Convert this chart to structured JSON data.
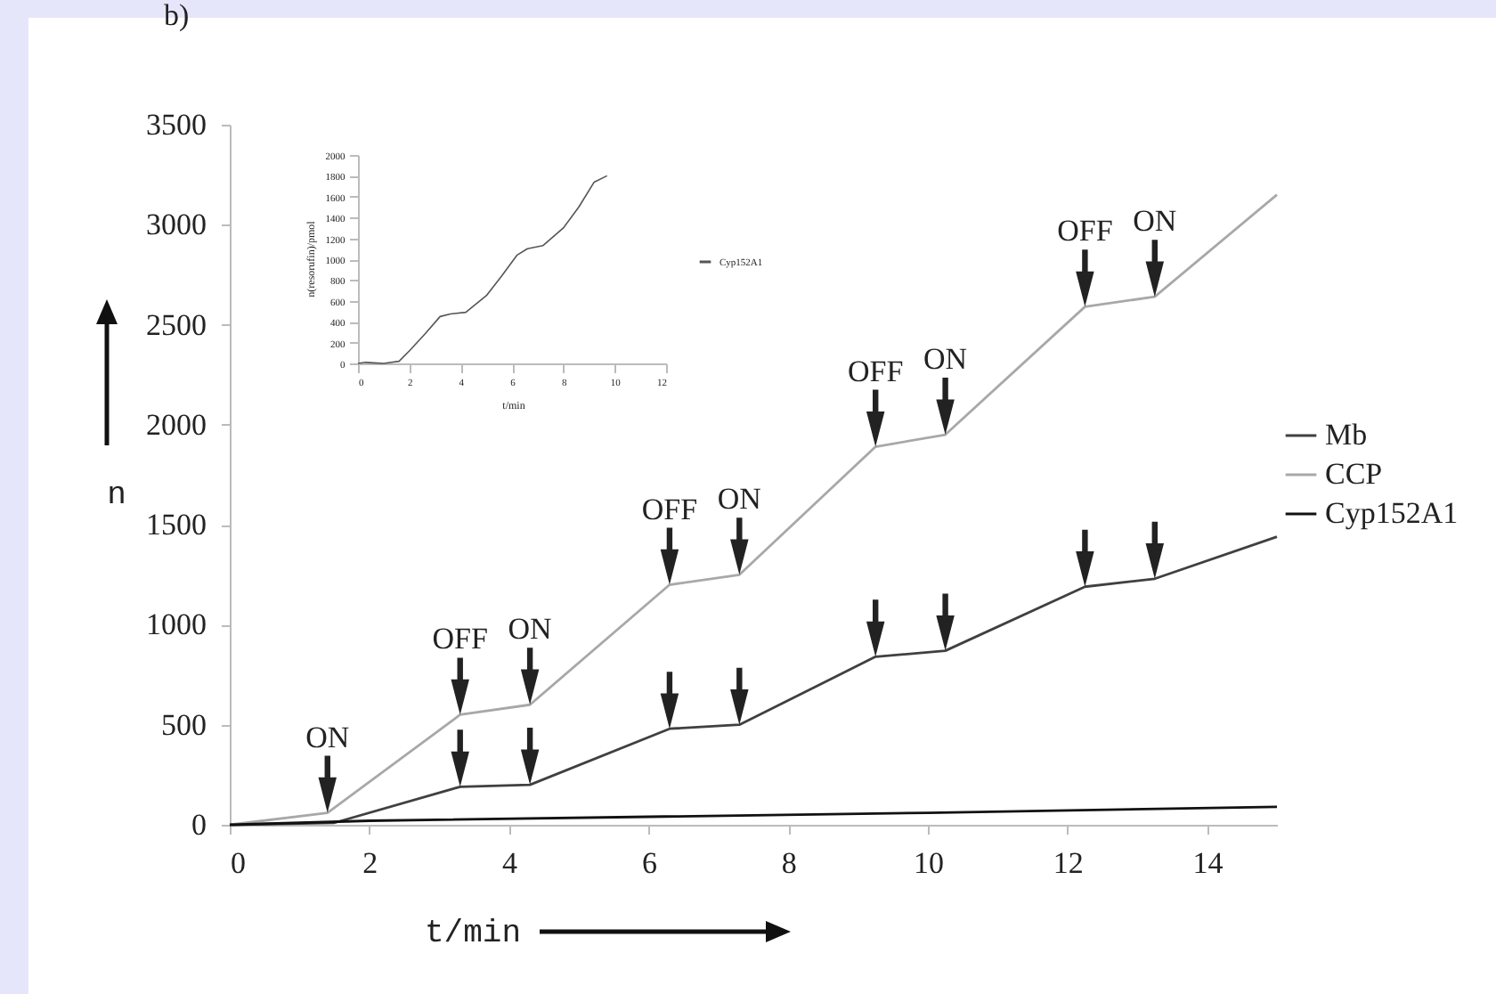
{
  "chart_data": [
    {
      "type": "line",
      "title": "b)",
      "xlabel": "t/min",
      "ylabel": "n",
      "xlim": [
        0,
        15
      ],
      "xticks": [
        0,
        2,
        4,
        6,
        8,
        10,
        12,
        14
      ],
      "ylim": [
        0,
        3500
      ],
      "yticks": [
        0,
        500,
        1000,
        1500,
        2000,
        2500,
        3000,
        3500
      ],
      "legend": "right",
      "series": [
        {
          "name": "Mb",
          "color": "#404040",
          "x": [
            0,
            1.5,
            3.3,
            4.3,
            6.3,
            7.3,
            9.25,
            10.25,
            12.25,
            13.25,
            15
          ],
          "values": [
            0,
            10,
            190,
            200,
            480,
            500,
            840,
            870,
            1190,
            1230,
            1440
          ]
        },
        {
          "name": "CCP",
          "color": "#a8a8a8",
          "x": [
            0,
            1.4,
            3.3,
            4.3,
            6.3,
            7.3,
            9.25,
            10.25,
            12.25,
            13.25,
            15
          ],
          "values": [
            0,
            60,
            550,
            600,
            1200,
            1250,
            1890,
            1950,
            2590,
            2640,
            3150
          ]
        },
        {
          "name": "Cyp152A1",
          "color": "#111111",
          "x": [
            0,
            2,
            6,
            10,
            15
          ],
          "values": [
            0,
            20,
            40,
            60,
            90
          ]
        }
      ],
      "annotations": [
        {
          "text": "ON",
          "x": 1.4,
          "y": 60
        },
        {
          "text": "OFF",
          "x": 3.3,
          "y": 550
        },
        {
          "text": "ON",
          "x": 4.3,
          "y": 600
        },
        {
          "text": "OFF",
          "x": 6.3,
          "y": 1200
        },
        {
          "text": "ON",
          "x": 7.3,
          "y": 1250
        },
        {
          "text": "OFF",
          "x": 9.25,
          "y": 1890
        },
        {
          "text": "ON",
          "x": 10.25,
          "y": 1950
        },
        {
          "text": "OFF",
          "x": 12.25,
          "y": 2590
        },
        {
          "text": "ON",
          "x": 13.25,
          "y": 2640
        }
      ]
    },
    {
      "type": "line",
      "xlabel": "t/min",
      "ylabel": "n(resorufin)/pmol",
      "xlim": [
        0,
        12
      ],
      "xticks": [
        0,
        2,
        4,
        6,
        8,
        10,
        12
      ],
      "ylim": [
        0,
        2000
      ],
      "yticks": [
        0,
        200,
        400,
        600,
        800,
        1000,
        1200,
        1400,
        1600,
        1800,
        2000
      ],
      "legend": "right",
      "series": [
        {
          "name": "Cyp152A1",
          "color": "#555555",
          "x": [
            0,
            0.3,
            0.6,
            1,
            1.6,
            2,
            2.6,
            3.2,
            3.6,
            4.2,
            5,
            5.6,
            6.2,
            6.6,
            7.2,
            8,
            8.6,
            9.2,
            9.7
          ],
          "values": [
            0,
            10,
            5,
            0,
            20,
            120,
            280,
            450,
            475,
            490,
            650,
            840,
            1040,
            1100,
            1130,
            1300,
            1500,
            1740,
            1800
          ]
        }
      ]
    }
  ]
}
